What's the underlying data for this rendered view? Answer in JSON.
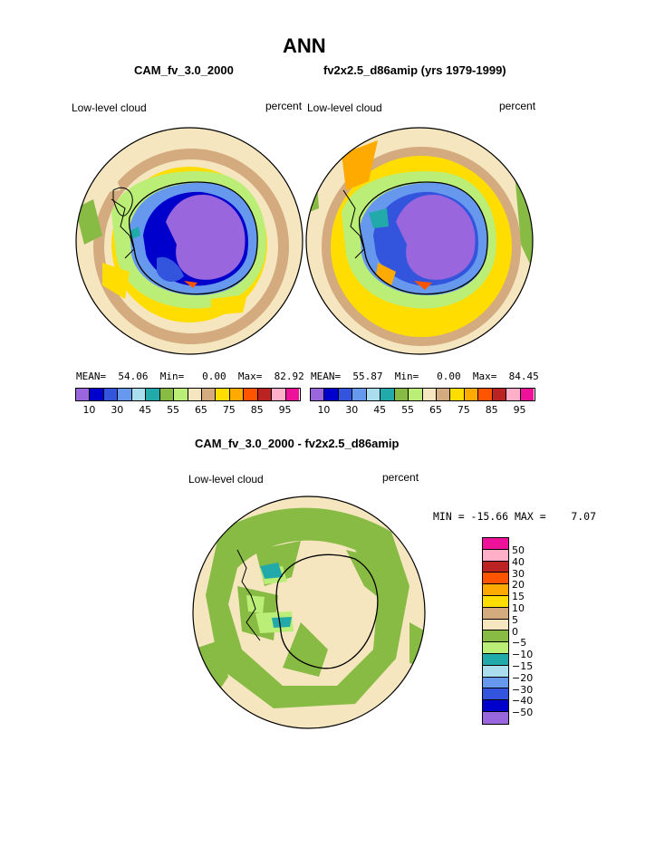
{
  "title": "ANN",
  "panels": {
    "left": {
      "subtitle": "CAM_fv_3.0_2000",
      "var_label": "Low-level cloud",
      "units": "percent",
      "mean_label": "MEAN=",
      "mean": "54.06",
      "min_label": "Min=",
      "min": "0.00",
      "max_label": "Max=",
      "max": "82.92"
    },
    "right": {
      "subtitle": "fv2x2.5_d86amip (yrs 1979-1999)",
      "var_label": "Low-level cloud",
      "units": "percent",
      "mean_label": "MEAN=",
      "mean": "55.87",
      "min_label": "Min=",
      "min": "0.00",
      "max_label": "Max=",
      "max": "84.45"
    },
    "diff": {
      "subtitle": "CAM_fv_3.0_2000 - fv2x2.5_d86amip",
      "var_label": "Low-level cloud",
      "units": "percent",
      "minmax": "MIN = -15.66 MAX =    7.07"
    }
  },
  "colorbar_abs": {
    "colors": [
      "#9966dd",
      "#0000cc",
      "#3355dd",
      "#6699ee",
      "#aaddee",
      "#22aaaa",
      "#88bb44",
      "#bbee77",
      "#f5e6c0",
      "#d4aa7f",
      "#ffdd00",
      "#ffaa00",
      "#ff5500",
      "#bb2222",
      "#ffb0c8",
      "#ee1199"
    ],
    "ticks": [
      "10",
      "30",
      "45",
      "55",
      "65",
      "75",
      "85",
      "95"
    ]
  },
  "colorbar_diff": {
    "colors": [
      "#ee1199",
      "#ffb0c8",
      "#bb2222",
      "#ff5500",
      "#ffaa00",
      "#ffdd00",
      "#d4aa7f",
      "#f5e6c0",
      "#88bb44",
      "#bbee77",
      "#22aaaa",
      "#aaddee",
      "#6699ee",
      "#3355dd",
      "#0000cc",
      "#9966dd"
    ],
    "ticks": [
      "50",
      "40",
      "30",
      "20",
      "15",
      "10",
      "5",
      "0",
      "−5",
      "−10",
      "−15",
      "−20",
      "−30",
      "−40",
      "−50"
    ]
  }
}
